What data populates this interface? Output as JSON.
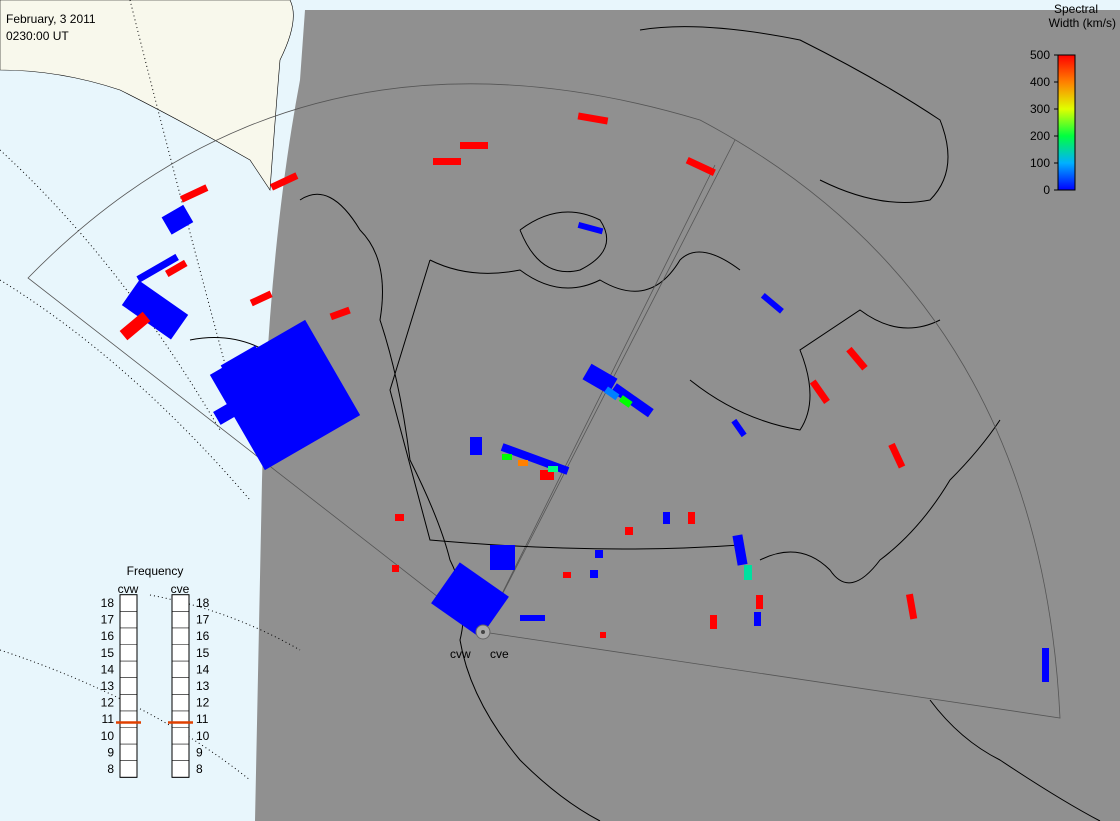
{
  "header": {
    "date": "February, 3 2011",
    "time": "0230:00 UT"
  },
  "colorbar": {
    "title_line1": "Spectral",
    "title_line2": "Width (km/s)",
    "range": [
      0,
      500
    ],
    "ticks": [
      0,
      100,
      200,
      300,
      400,
      500
    ]
  },
  "frequency": {
    "title": "Frequency",
    "range": [
      8,
      18
    ],
    "ticks": [
      8,
      9,
      10,
      11,
      12,
      13,
      14,
      15,
      16,
      17,
      18
    ],
    "radars": [
      {
        "name": "cvw",
        "value": 10.8
      },
      {
        "name": "cve",
        "value": 10.8
      }
    ]
  },
  "map_labels": {
    "radar_west": "cvw",
    "radar_east": "cve"
  }
}
